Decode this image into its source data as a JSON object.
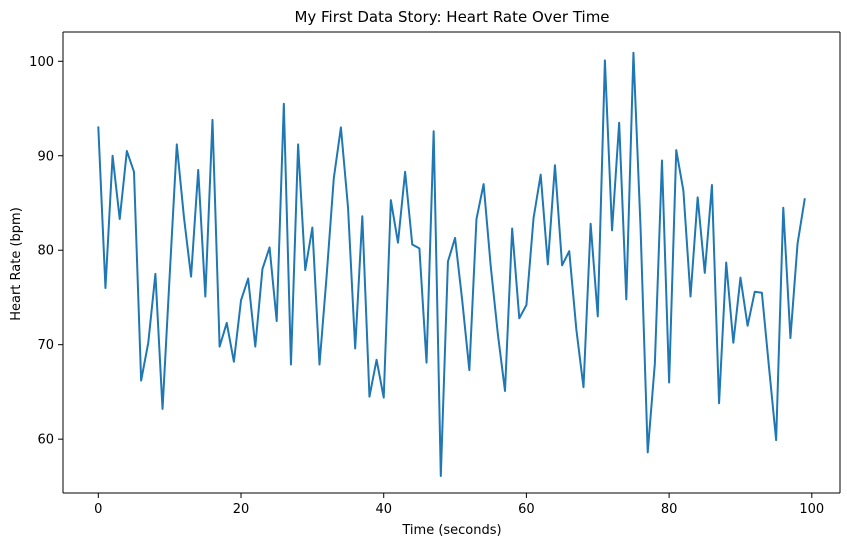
{
  "chart_data": {
    "type": "line",
    "title": "My First Data Story: Heart Rate Over Time",
    "xlabel": "Time (seconds)",
    "ylabel": "Heart Rate (bpm)",
    "xlim": [
      -4.95,
      103.95
    ],
    "ylim": [
      54.3,
      103.1
    ],
    "xticks": [
      0,
      20,
      40,
      60,
      80,
      100
    ],
    "yticks": [
      60,
      70,
      80,
      90,
      100
    ],
    "grid": false,
    "series": [
      {
        "name": "Heart Rate",
        "color": "#1f77b4",
        "x": [
          0,
          1,
          2,
          3,
          4,
          5,
          6,
          7,
          8,
          9,
          10,
          11,
          12,
          13,
          14,
          15,
          16,
          17,
          18,
          19,
          20,
          21,
          22,
          23,
          24,
          25,
          26,
          27,
          28,
          29,
          30,
          31,
          32,
          33,
          34,
          35,
          36,
          37,
          38,
          39,
          40,
          41,
          42,
          43,
          44,
          45,
          46,
          47,
          48,
          49,
          50,
          51,
          52,
          53,
          54,
          55,
          56,
          57,
          58,
          59,
          60,
          61,
          62,
          63,
          64,
          65,
          66,
          67,
          68,
          69,
          70,
          71,
          72,
          73,
          74,
          75,
          76,
          77,
          78,
          79,
          80,
          81,
          82,
          83,
          84,
          85,
          86,
          87,
          88,
          89,
          90,
          91,
          92,
          93,
          94,
          95,
          96,
          97,
          98,
          99
        ],
        "values": [
          93.0,
          76.0,
          90.0,
          83.3,
          90.5,
          88.3,
          66.2,
          70.2,
          77.5,
          63.2,
          77.3,
          91.2,
          83.5,
          77.2,
          88.5,
          75.1,
          93.8,
          69.8,
          72.3,
          68.2,
          74.7,
          77.0,
          69.8,
          78.0,
          80.3,
          72.5,
          95.5,
          67.9,
          91.2,
          77.9,
          82.4,
          67.9,
          77.3,
          87.6,
          93.0,
          84.5,
          69.6,
          83.6,
          64.5,
          68.4,
          64.4,
          85.3,
          80.8,
          88.3,
          80.6,
          80.2,
          68.1,
          92.6,
          56.1,
          78.8,
          81.3,
          74.7,
          67.3,
          83.3,
          87.0,
          78.3,
          71.1,
          65.1,
          82.3,
          72.8,
          74.2,
          83.4,
          88.0,
          78.5,
          89.0,
          78.4,
          79.9,
          71.6,
          65.5,
          82.8,
          73.0,
          100.1,
          82.1,
          93.5,
          74.8,
          100.9,
          82.3,
          58.6,
          68.0,
          89.5,
          66.0,
          90.6,
          86.3,
          75.1,
          85.6,
          77.6,
          86.9,
          63.8,
          78.7,
          70.2,
          77.1,
          72.0,
          75.6,
          75.5,
          67.6,
          59.9,
          84.5,
          70.7,
          80.7,
          85.4
        ]
      }
    ]
  }
}
